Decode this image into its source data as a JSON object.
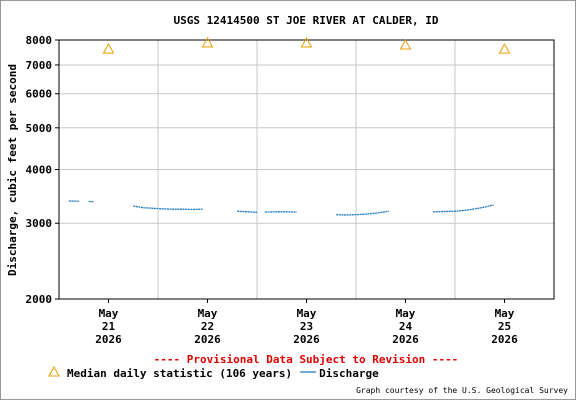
{
  "chart_data": {
    "type": "line",
    "title": "USGS 12414500 ST JOE RIVER AT CALDER, ID",
    "y_label": "Discharge, cubic feet per second",
    "annotation": "---- Provisional Data Subject to Revision ----",
    "credit": "Graph courtesy of the U.S. Geological Survey",
    "log_y": true,
    "grid": true,
    "ylim": [
      2000,
      8000
    ],
    "yticks": [
      2000,
      3000,
      4000,
      5000,
      6000,
      7000,
      8000
    ],
    "xlim": [
      0,
      5
    ],
    "xticks": [
      {
        "value": 0.5,
        "label": "May 21 2026"
      },
      {
        "value": 1.5,
        "label": "May 22 2026"
      },
      {
        "value": 2.5,
        "label": "May 23 2026"
      },
      {
        "value": 3.5,
        "label": "May 24 2026"
      },
      {
        "value": 4.5,
        "label": "May 25 2026"
      }
    ],
    "xgrid": [
      1,
      2,
      3,
      4
    ],
    "series": [
      {
        "name": "Median daily statistic (106 years)",
        "color": "#e8a000",
        "marker": "triangle",
        "x": [
          0.5,
          1.5,
          2.5,
          3.5,
          4.5
        ],
        "values": [
          7620,
          7870,
          7870,
          7790,
          7620
        ]
      },
      {
        "name": "Discharge",
        "color": "#1f7ac0",
        "marker": "line",
        "x": [
          0.1,
          0.2,
          0.25,
          0.3,
          0.35,
          0.5,
          0.75,
          0.85,
          0.95,
          1.05,
          1.15,
          1.25,
          1.35,
          1.45,
          1.6,
          1.8,
          1.9,
          2.0,
          2.04,
          2.08,
          2.2,
          2.3,
          2.4,
          2.6,
          2.8,
          2.9,
          3.0,
          3.1,
          3.2,
          3.33,
          3.55,
          3.78,
          3.9,
          4.0,
          4.1,
          4.2,
          4.3,
          4.39
        ],
        "values": [
          3380,
          3375,
          null,
          3370,
          3365,
          null,
          3290,
          3260,
          3250,
          3240,
          3235,
          3235,
          3230,
          3235,
          null,
          3200,
          3190,
          3180,
          null,
          3185,
          3190,
          3190,
          3185,
          null,
          3140,
          3135,
          3140,
          3150,
          3165,
          3200,
          null,
          3190,
          3195,
          3200,
          3215,
          3240,
          3270,
          3310
        ]
      }
    ]
  }
}
